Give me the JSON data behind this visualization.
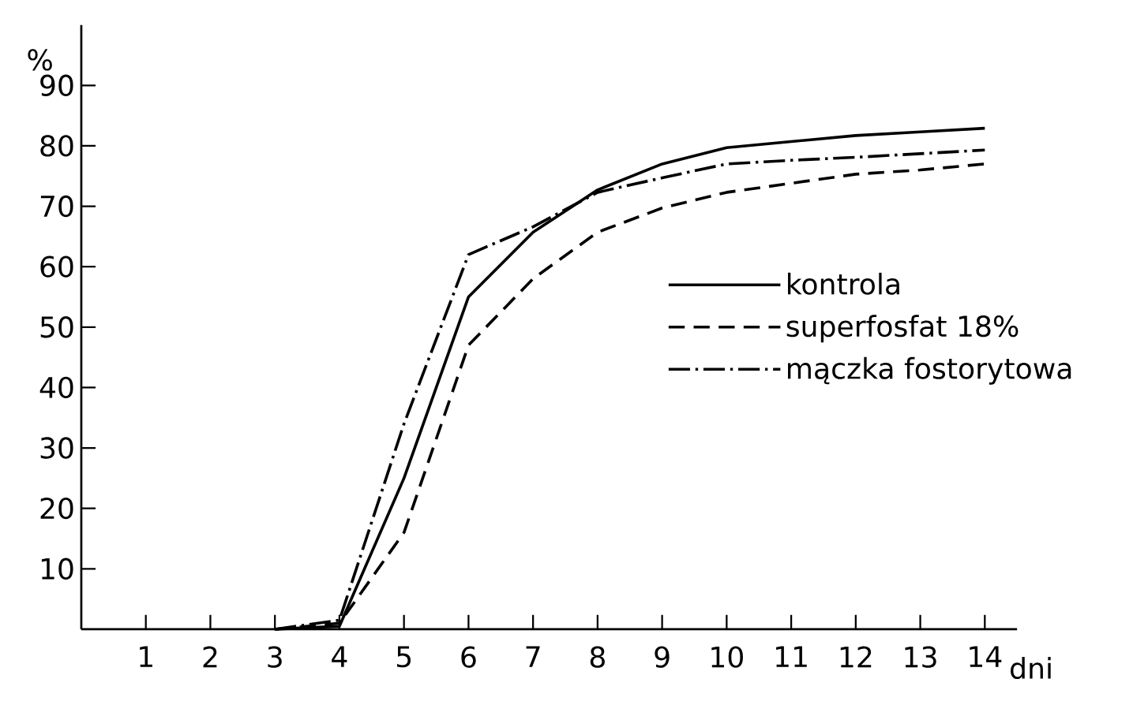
{
  "chart_data": {
    "type": "line",
    "xlabel": "dni",
    "ylabel": "%",
    "x": [
      3,
      4,
      5,
      6,
      7,
      8,
      9,
      10,
      11,
      12,
      13,
      14
    ],
    "series": [
      {
        "name": "kontrola",
        "color": "#000000",
        "line_style": "solid",
        "values": [
          0,
          0.5,
          25,
          55,
          65.7,
          72.7,
          77,
          79.7,
          80.7,
          81.7,
          82.3,
          82.9
        ]
      },
      {
        "name": "superfosfat 18%",
        "color": "#000000",
        "line_style": "dashed",
        "values": [
          0,
          1,
          16,
          47,
          58,
          65.7,
          69.7,
          72.3,
          73.8,
          75.3,
          76,
          77
        ]
      },
      {
        "name": "mączka fostorytowa",
        "color": "#000000",
        "line_style": "dashdot",
        "values": [
          0,
          1.5,
          34,
          62,
          66.6,
          72.3,
          74.7,
          77,
          77.6,
          78.1,
          78.7,
          79.3
        ]
      }
    ],
    "xlim": [
      0,
      14.5
    ],
    "ylim": [
      0,
      100
    ],
    "xticks": [
      1,
      2,
      3,
      4,
      5,
      6,
      7,
      8,
      9,
      10,
      11,
      12,
      13,
      14
    ],
    "yticks": [
      10,
      20,
      30,
      40,
      50,
      60,
      70,
      80,
      90
    ],
    "legend": "right",
    "grid": false
  }
}
